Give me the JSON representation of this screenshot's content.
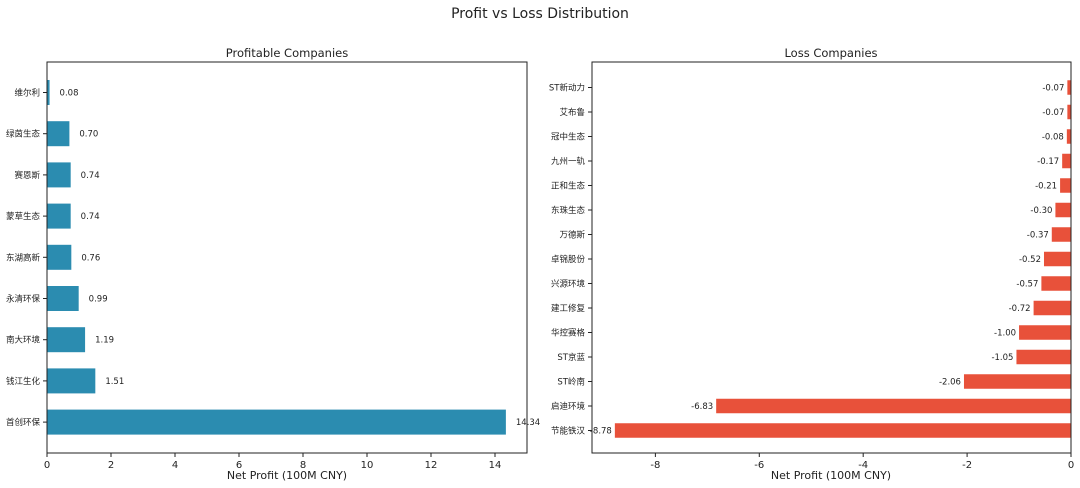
{
  "suptitle": "Profit vs Loss Distribution",
  "colors": {
    "profit": "#2b8cb0",
    "loss": "#e8513a"
  },
  "chart_data": [
    {
      "type": "bar",
      "orientation": "horizontal",
      "title": "Profitable Companies",
      "xlabel": "Net Profit (100M CNY)",
      "ylabel": "",
      "xlim": [
        0,
        15
      ],
      "xticks": [
        0,
        2,
        4,
        6,
        8,
        10,
        12,
        14
      ],
      "categories": [
        "维尔利",
        "绿茵生态",
        "赛恩斯",
        "蒙草生态",
        "东湖高新",
        "永清环保",
        "南大环境",
        "钱江生化",
        "首创环保"
      ],
      "values": [
        0.08,
        0.7,
        0.74,
        0.74,
        0.76,
        0.99,
        1.19,
        1.51,
        14.34
      ],
      "labels": [
        "0.08",
        "0.70",
        "0.74",
        "0.74",
        "0.76",
        "0.99",
        "1.19",
        "1.51",
        "14.34"
      ],
      "color": "#2b8cb0"
    },
    {
      "type": "bar",
      "orientation": "horizontal",
      "title": "Loss Companies",
      "xlabel": "Net Profit (100M CNY)",
      "ylabel": "",
      "xlim": [
        -9.22,
        0
      ],
      "xticks": [
        -8,
        -6,
        -4,
        -2,
        0
      ],
      "categories": [
        "ST新动力",
        "艾布鲁",
        "冠中生态",
        "九州一轨",
        "正和生态",
        "东珠生态",
        "万德斯",
        "卓锦股份",
        "兴源环境",
        "建工修复",
        "华控赛格",
        "ST京蓝",
        "ST岭南",
        "启迪环境",
        "节能铁汉"
      ],
      "values": [
        -0.07,
        -0.07,
        -0.08,
        -0.17,
        -0.21,
        -0.3,
        -0.37,
        -0.52,
        -0.57,
        -0.72,
        -1.0,
        -1.05,
        -2.06,
        -6.83,
        -8.78
      ],
      "labels": [
        "-0.07",
        "-0.07",
        "-0.08",
        "-0.17",
        "-0.21",
        "-0.30",
        "-0.37",
        "-0.52",
        "-0.57",
        "-0.72",
        "-1.00",
        "-1.05",
        "-2.06",
        "-6.83",
        "-8.78"
      ],
      "color": "#e8513a"
    }
  ]
}
